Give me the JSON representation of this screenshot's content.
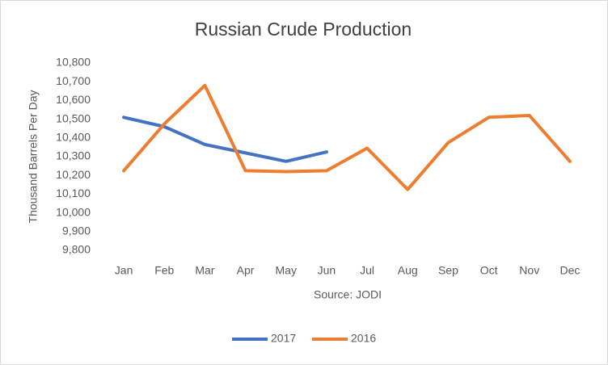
{
  "chart_data": {
    "type": "line",
    "title": "Russian Crude Production",
    "xlabel": "Source: JODI",
    "ylabel": "Thousand Barrels Per Day",
    "categories": [
      "Jan",
      "Feb",
      "Mar",
      "Apr",
      "May",
      "Jun",
      "Jul",
      "Aug",
      "Sep",
      "Oct",
      "Nov",
      "Dec"
    ],
    "series": [
      {
        "name": "2017",
        "color": "#4472c4",
        "values": [
          10510,
          10460,
          10365,
          10320,
          10275,
          10325,
          null,
          null,
          null,
          null,
          null,
          null
        ]
      },
      {
        "name": "2016",
        "color": "#ed7d31",
        "values": [
          10225,
          10475,
          10680,
          10225,
          10220,
          10225,
          10345,
          10125,
          10375,
          10510,
          10520,
          10275
        ]
      }
    ],
    "ylim": [
      9800,
      10800
    ],
    "yticks": [
      {
        "value": 9800,
        "label": "9,800"
      },
      {
        "value": 9900,
        "label": "9,900"
      },
      {
        "value": 10000,
        "label": "10,000"
      },
      {
        "value": 10100,
        "label": "10,100"
      },
      {
        "value": 10200,
        "label": "10,200"
      },
      {
        "value": 10300,
        "label": "10,300"
      },
      {
        "value": 10400,
        "label": "10,400"
      },
      {
        "value": 10500,
        "label": "10,500"
      },
      {
        "value": 10600,
        "label": "10,600"
      },
      {
        "value": 10700,
        "label": "10,700"
      },
      {
        "value": 10800,
        "label": "10,800"
      }
    ],
    "legend": "bottom"
  }
}
